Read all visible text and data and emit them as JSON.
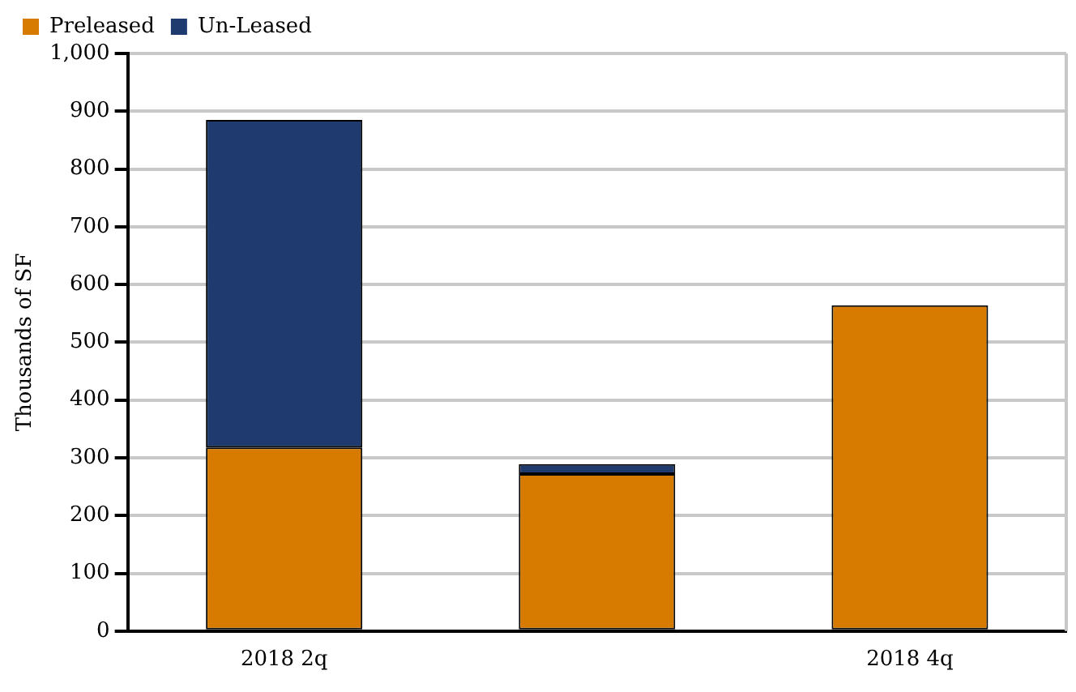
{
  "chart_data": {
    "type": "bar",
    "stacked": true,
    "ylabel": "Thousands of SF",
    "categories": [
      "2018 2q",
      null,
      "2018 4q"
    ],
    "series": [
      {
        "name": "Preleased",
        "color": "#d67b00",
        "values": [
          318,
          272,
          564
        ]
      },
      {
        "name": "Un-Leased",
        "color": "#1f3a6e",
        "values": [
          567,
          17,
          null
        ]
      }
    ],
    "ylim": [
      0,
      1000
    ],
    "yticks": [
      0,
      100,
      200,
      300,
      400,
      500,
      600,
      700,
      800,
      900,
      {
        "value": 1000,
        "label": "1,000"
      }
    ],
    "grid": "y",
    "legend": "top left"
  }
}
